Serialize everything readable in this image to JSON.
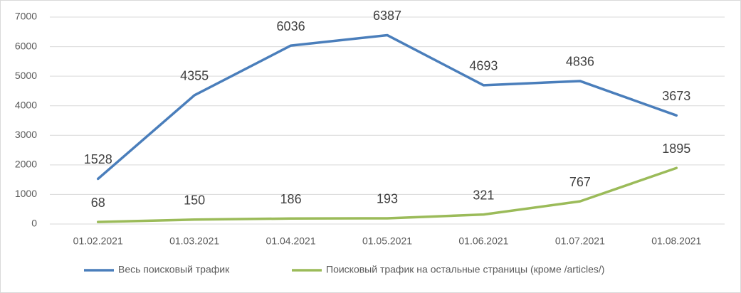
{
  "chart_data": {
    "type": "line",
    "categories": [
      "01.02.2021",
      "01.03.2021",
      "01.04.2021",
      "01.05.2021",
      "01.06.2021",
      "01.07.2021",
      "01.08.2021"
    ],
    "series": [
      {
        "name": "Весь поисковый трафик",
        "color": "#4a7ebb",
        "values": [
          1528,
          4355,
          6036,
          6387,
          4693,
          4836,
          3673
        ]
      },
      {
        "name": "Поисковый трафик на остальные страницы (кроме /articles/)",
        "color": "#9bbb59",
        "values": [
          68,
          150,
          186,
          193,
          321,
          767,
          1895
        ]
      }
    ],
    "ylim": [
      0,
      7000
    ],
    "yticks": [
      0,
      1000,
      2000,
      3000,
      4000,
      5000,
      6000,
      7000
    ],
    "grid": true,
    "legend": "bottom",
    "data_labels": true
  }
}
